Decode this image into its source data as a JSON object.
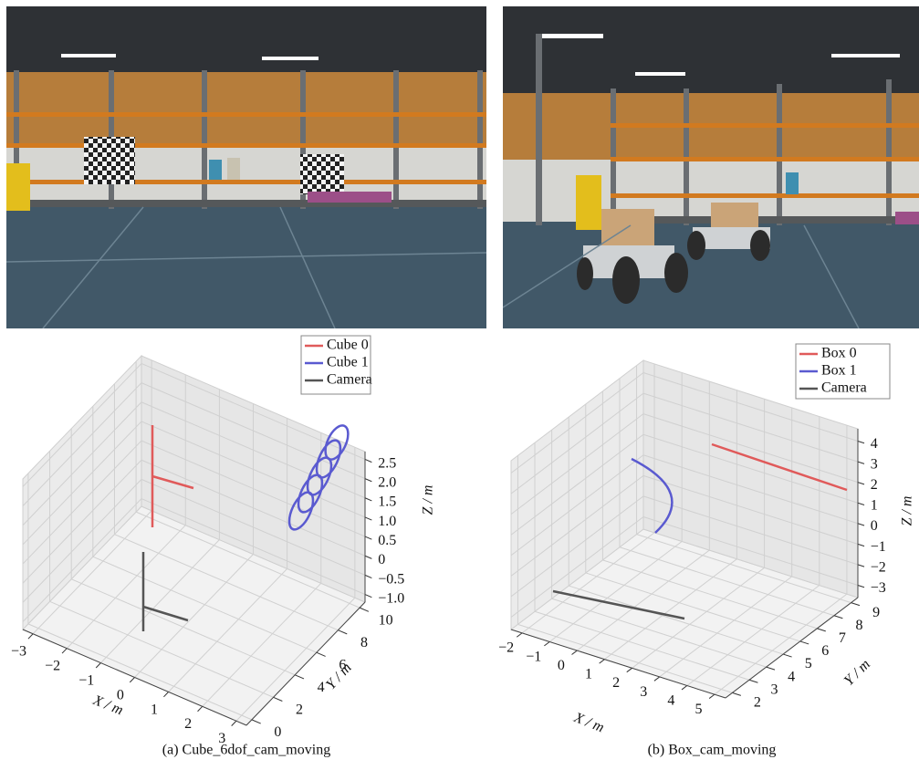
{
  "panels": [
    {
      "caption": "(a) Cube_6dof_cam_moving",
      "legend": [
        {
          "name": "Cube 0",
          "color": "#e05a5a"
        },
        {
          "name": "Cube 1",
          "color": "#5a5ad0"
        },
        {
          "name": "Camera",
          "color": "#555555"
        }
      ],
      "axes": {
        "x": {
          "label": "X / m",
          "lim": [
            -3.3,
            3.3
          ],
          "ticks": [
            {
              "value": -3,
              "label": "−3"
            },
            {
              "value": -2,
              "label": "−2"
            },
            {
              "value": -1,
              "label": "−1"
            },
            0,
            1,
            2,
            3
          ]
        },
        "y": {
          "label": "Y / m",
          "lim": [
            -0.5,
            10.5
          ],
          "ticks": [
            0,
            2,
            4,
            6,
            8,
            10
          ]
        },
        "z": {
          "label": "Z / m",
          "lim": [
            -1.2,
            2.7
          ],
          "ticks": [
            {
              "value": -1,
              "label": "−1.0"
            },
            {
              "value": -0.5,
              "label": "−0.5"
            },
            0,
            0.5,
            {
              "value": 1,
              "label": "1.0"
            },
            1.5,
            {
              "value": 2,
              "label": "2.0"
            },
            2.5
          ]
        }
      }
    },
    {
      "caption": "(b) Box_cam_moving",
      "legend": [
        {
          "name": "Box 0",
          "color": "#e05a5a"
        },
        {
          "name": "Box 1",
          "color": "#5a5ad0"
        },
        {
          "name": "Camera",
          "color": "#555555"
        }
      ],
      "axes": {
        "x": {
          "label": "X / m",
          "lim": [
            -2.4,
            5.4
          ],
          "ticks": [
            {
              "value": -2,
              "label": "−2"
            },
            {
              "value": -1,
              "label": "−1"
            },
            0,
            1,
            2,
            3,
            4,
            5
          ]
        },
        "y": {
          "label": "Y / m",
          "lim": [
            1.6,
            9.4
          ],
          "ticks": [
            2,
            3,
            4,
            5,
            6,
            7,
            8,
            9
          ]
        },
        "z": {
          "label": "Z / m",
          "lim": [
            -3.6,
            4.6
          ],
          "ticks": [
            {
              "value": -3,
              "label": "−3"
            },
            {
              "value": -2,
              "label": "−2"
            },
            {
              "value": -1,
              "label": "−1"
            },
            0,
            1,
            2,
            3,
            4
          ]
        }
      }
    }
  ]
}
